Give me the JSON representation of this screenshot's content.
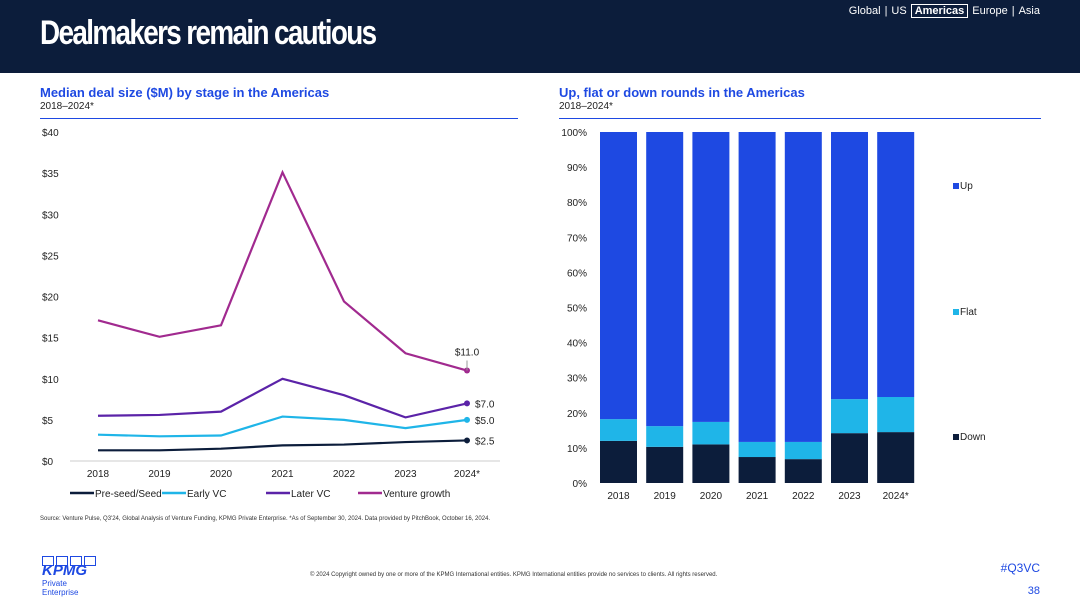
{
  "header": {
    "title": "Dealmakers remain cautious",
    "nav": [
      "Global",
      "|",
      "US",
      "Americas",
      "Europe",
      "|",
      "Asia"
    ],
    "nav_selected": "Americas"
  },
  "footer": {
    "source": "Source: Venture Pulse, Q3'24, Global Analysis of Venture Funding, KPMG Private Enterprise. *As of September 30, 2024. Data provided by PitchBook, October 16, 2024.",
    "copyright": "© 2024 Copyright owned by one or more of the KPMG International entities. KPMG International entities provide no services to clients. All rights reserved.",
    "hashtag": "#Q3VC",
    "page": "38",
    "logo": "KPMG",
    "logo_sub": "Private Enterprise"
  },
  "chart_data": [
    {
      "type": "line",
      "title": "Median deal size ($M) by stage in the Americas",
      "subtitle": "2018–2024*",
      "categories": [
        "2018",
        "2019",
        "2020",
        "2021",
        "2022",
        "2023",
        "2024*"
      ],
      "ylim": [
        0,
        40
      ],
      "yticks": [
        "$0",
        "$5",
        "$10",
        "$15",
        "$20",
        "$25",
        "$30",
        "$35",
        "$40"
      ],
      "legend": "bottom",
      "series": [
        {
          "name": "Pre-seed/Seed",
          "color": "#0c1d3b",
          "values": [
            1.3,
            1.3,
            1.5,
            1.9,
            2.0,
            2.3,
            2.5
          ],
          "end_label": "$2.5"
        },
        {
          "name": "Early VC",
          "color": "#1fb5e8",
          "values": [
            3.2,
            3.0,
            3.1,
            5.4,
            5.0,
            4.0,
            5.0
          ],
          "end_label": "$5.0"
        },
        {
          "name": "Later VC",
          "color": "#5b23a8",
          "values": [
            5.5,
            5.6,
            6.0,
            10.0,
            8.0,
            5.3,
            7.0
          ],
          "end_label": "$7.0"
        },
        {
          "name": "Venture growth",
          "color": "#a12a8f",
          "values": [
            17.1,
            15.1,
            16.5,
            35.1,
            19.4,
            13.1,
            11.0
          ],
          "end_label": "$11.0"
        }
      ]
    },
    {
      "type": "bar",
      "stacked": true,
      "title": "Up, flat or down rounds in the Americas",
      "subtitle": "2018–2024*",
      "categories": [
        "2018",
        "2019",
        "2020",
        "2021",
        "2022",
        "2023",
        "2024*"
      ],
      "ylim": [
        0,
        100
      ],
      "yticks": [
        "0%",
        "10%",
        "20%",
        "30%",
        "40%",
        "50%",
        "60%",
        "70%",
        "80%",
        "90%",
        "100%"
      ],
      "legend": "right",
      "series": [
        {
          "name": "Down",
          "color": "#0c1d3b",
          "values": [
            12.0,
            10.3,
            11.0,
            7.4,
            6.8,
            14.2,
            14.5
          ]
        },
        {
          "name": "Flat",
          "color": "#1fb5e8",
          "values": [
            6.2,
            5.9,
            6.4,
            4.3,
            4.9,
            9.7,
            10.0
          ]
        },
        {
          "name": "Up",
          "color": "#1e49e2",
          "values": [
            81.8,
            83.8,
            82.6,
            88.3,
            88.3,
            76.1,
            75.5
          ]
        }
      ]
    }
  ]
}
